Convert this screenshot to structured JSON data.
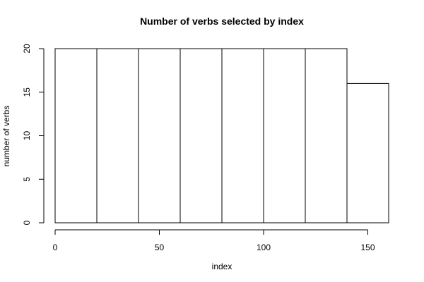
{
  "chart_data": {
    "type": "bar",
    "title": "Number of verbs selected by index",
    "xlabel": "index",
    "ylabel": "number of verbs",
    "bins": [
      {
        "start": 0,
        "end": 20,
        "value": 20
      },
      {
        "start": 20,
        "end": 40,
        "value": 20
      },
      {
        "start": 40,
        "end": 60,
        "value": 20
      },
      {
        "start": 60,
        "end": 80,
        "value": 20
      },
      {
        "start": 80,
        "end": 100,
        "value": 20
      },
      {
        "start": 100,
        "end": 120,
        "value": 20
      },
      {
        "start": 120,
        "end": 140,
        "value": 20
      },
      {
        "start": 140,
        "end": 160,
        "value": 16
      }
    ],
    "xlim": [
      0,
      160
    ],
    "ylim": [
      0,
      20
    ],
    "x_ticks": [
      "0",
      "50",
      "100",
      "150"
    ],
    "y_ticks": [
      "0",
      "5",
      "10",
      "15",
      "20"
    ],
    "grid": false,
    "colors": {
      "bar_fill": "#ffffff",
      "bar_stroke": "#000000"
    }
  }
}
